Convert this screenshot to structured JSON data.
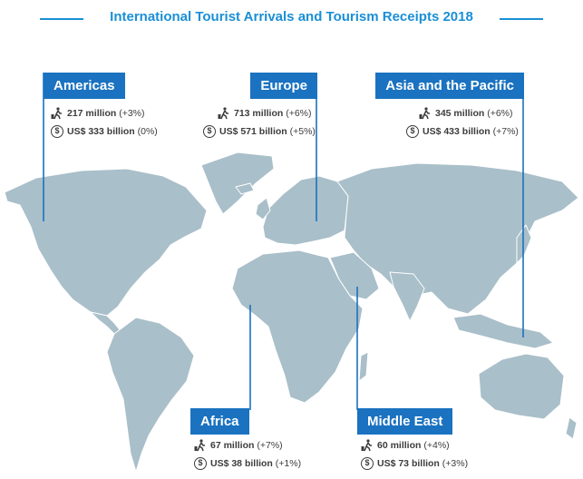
{
  "title": "International Tourist Arrivals and Tourism Receipts 2018",
  "icons": {
    "arrivals": "traveler-with-suitcase-icon",
    "receipts": "dollar-coin-icon"
  },
  "colors": {
    "title": "#1a8fd6",
    "region_box": "#1a72c0",
    "land": "#a9bfc9",
    "text": "#3c3c3c"
  },
  "regions": {
    "americas": {
      "name": "Americas",
      "arrivals": "217 million",
      "arrivals_change": "(+3%)",
      "receipts": "US$ 333 billion",
      "receipts_change": "(0%)"
    },
    "europe": {
      "name": "Europe",
      "arrivals": "713 million",
      "arrivals_change": "(+6%)",
      "receipts": "US$ 571 billion",
      "receipts_change": "(+5%)"
    },
    "asia_pacific": {
      "name": "Asia and the Pacific",
      "arrivals": "345 million",
      "arrivals_change": "(+6%)",
      "receipts": "US$ 433 billion",
      "receipts_change": "(+7%)"
    },
    "africa": {
      "name": "Africa",
      "arrivals": "67 million",
      "arrivals_change": "(+7%)",
      "receipts": "US$ 38 billion",
      "receipts_change": "(+1%)"
    },
    "middle_east": {
      "name": "Middle East",
      "arrivals": "60 million",
      "arrivals_change": "(+4%)",
      "receipts": "US$ 73 billion",
      "receipts_change": "(+3%)"
    }
  }
}
